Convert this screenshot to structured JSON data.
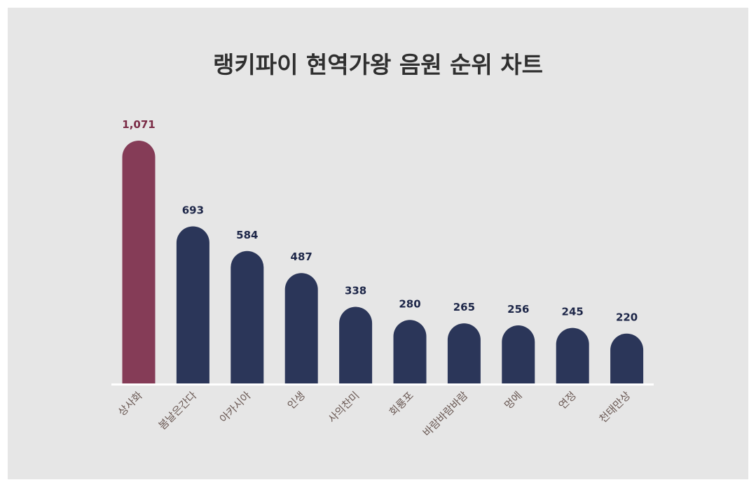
{
  "title": "랭키파이 현역가왕 음원 순위 차트",
  "chart_data": {
    "type": "bar",
    "title": "랭키파이 현역가왕 음원 순위 차트",
    "categories": [
      "상사화",
      "봄날은간다",
      "아카시아",
      "인생",
      "사의찬미",
      "회룡포",
      "바람바람바람",
      "멍에",
      "연정",
      "천태만상"
    ],
    "values": [
      1071,
      693,
      584,
      487,
      338,
      280,
      265,
      256,
      245,
      220
    ],
    "value_labels": [
      "1,071",
      "693",
      "584",
      "487",
      "338",
      "280",
      "265",
      "256",
      "245",
      "220"
    ],
    "xlabel": "",
    "ylabel": "",
    "ylim": [
      0,
      1071
    ],
    "grid": false,
    "legend": "none",
    "colors": {
      "highlight": "#853c57",
      "bar": "#2b3659",
      "highlight_label": "#7a2a45",
      "label": "#1d2648",
      "tick": "#6b5a55",
      "baseline": "#ffffff"
    }
  }
}
